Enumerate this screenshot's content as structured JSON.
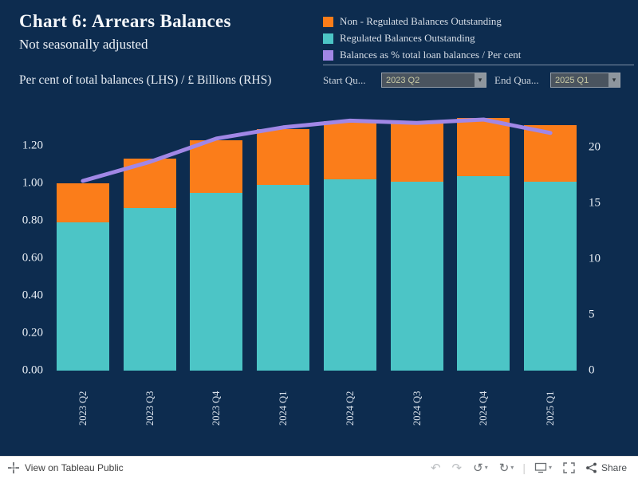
{
  "header": {
    "title": "Chart 6:  Arrears  Balances",
    "subtitle": "Not seasonally adjusted",
    "axis_note": "Per cent of total balances (LHS) / £ Billions (RHS)"
  },
  "legend": [
    {
      "label": "Non - Regulated Balances Outstanding",
      "color": "#fb7d1a"
    },
    {
      "label": "Regulated Balances Outstanding",
      "color": "#4cc5c6"
    },
    {
      "label": "Balances as % total loan balances / Per cent",
      "color": "#a187e6"
    }
  ],
  "filters": {
    "start_label": "Start Qu...",
    "start_value": "2023 Q2",
    "end_label": "End Qua...",
    "end_value": "2025 Q1"
  },
  "chart_data": {
    "type": "bar",
    "subtype": "stacked-bar-with-line",
    "categories": [
      "2023 Q2",
      "2023 Q3",
      "2023 Q4",
      "2024 Q1",
      "2024 Q2",
      "2024 Q3",
      "2024 Q4",
      "2025 Q1"
    ],
    "series": [
      {
        "name": "Regulated Balances Outstanding",
        "type": "bar",
        "axis": "LHS",
        "color": "#4cc5c6",
        "values": [
          0.79,
          0.87,
          0.95,
          0.99,
          1.02,
          1.01,
          1.04,
          1.01
        ]
      },
      {
        "name": "Non - Regulated Balances Outstanding",
        "type": "bar",
        "axis": "LHS",
        "color": "#fb7d1a",
        "values": [
          0.21,
          0.26,
          0.28,
          0.3,
          0.31,
          0.31,
          0.31,
          0.3
        ]
      },
      {
        "name": "Balances as % total loan balances / Per cent",
        "type": "line",
        "axis": "RHS",
        "color": "#a187e6",
        "values": [
          17.0,
          18.7,
          20.8,
          21.8,
          22.4,
          22.2,
          22.5,
          21.3
        ]
      }
    ],
    "lhs_ticks": [
      "0.00",
      "0.20",
      "0.40",
      "0.60",
      "0.80",
      "1.00",
      "1.20"
    ],
    "rhs_ticks": [
      "0",
      "5",
      "10",
      "15",
      "20"
    ],
    "lhs_range": [
      0,
      1.38
    ],
    "rhs_range": [
      0,
      23.2
    ],
    "title": "Chart 6: Arrears Balances",
    "xlabel": "",
    "ylabel_lhs": "£ Billions",
    "ylabel_rhs": "Per cent",
    "grid": false,
    "legend_position": "top-right"
  },
  "toolbar": {
    "view_label": "View on Tableau Public",
    "share_label": "Share",
    "undo": "↶",
    "redo": "↷",
    "reset": "↺",
    "refresh": "↻",
    "caret": "▾",
    "divider": "|"
  }
}
